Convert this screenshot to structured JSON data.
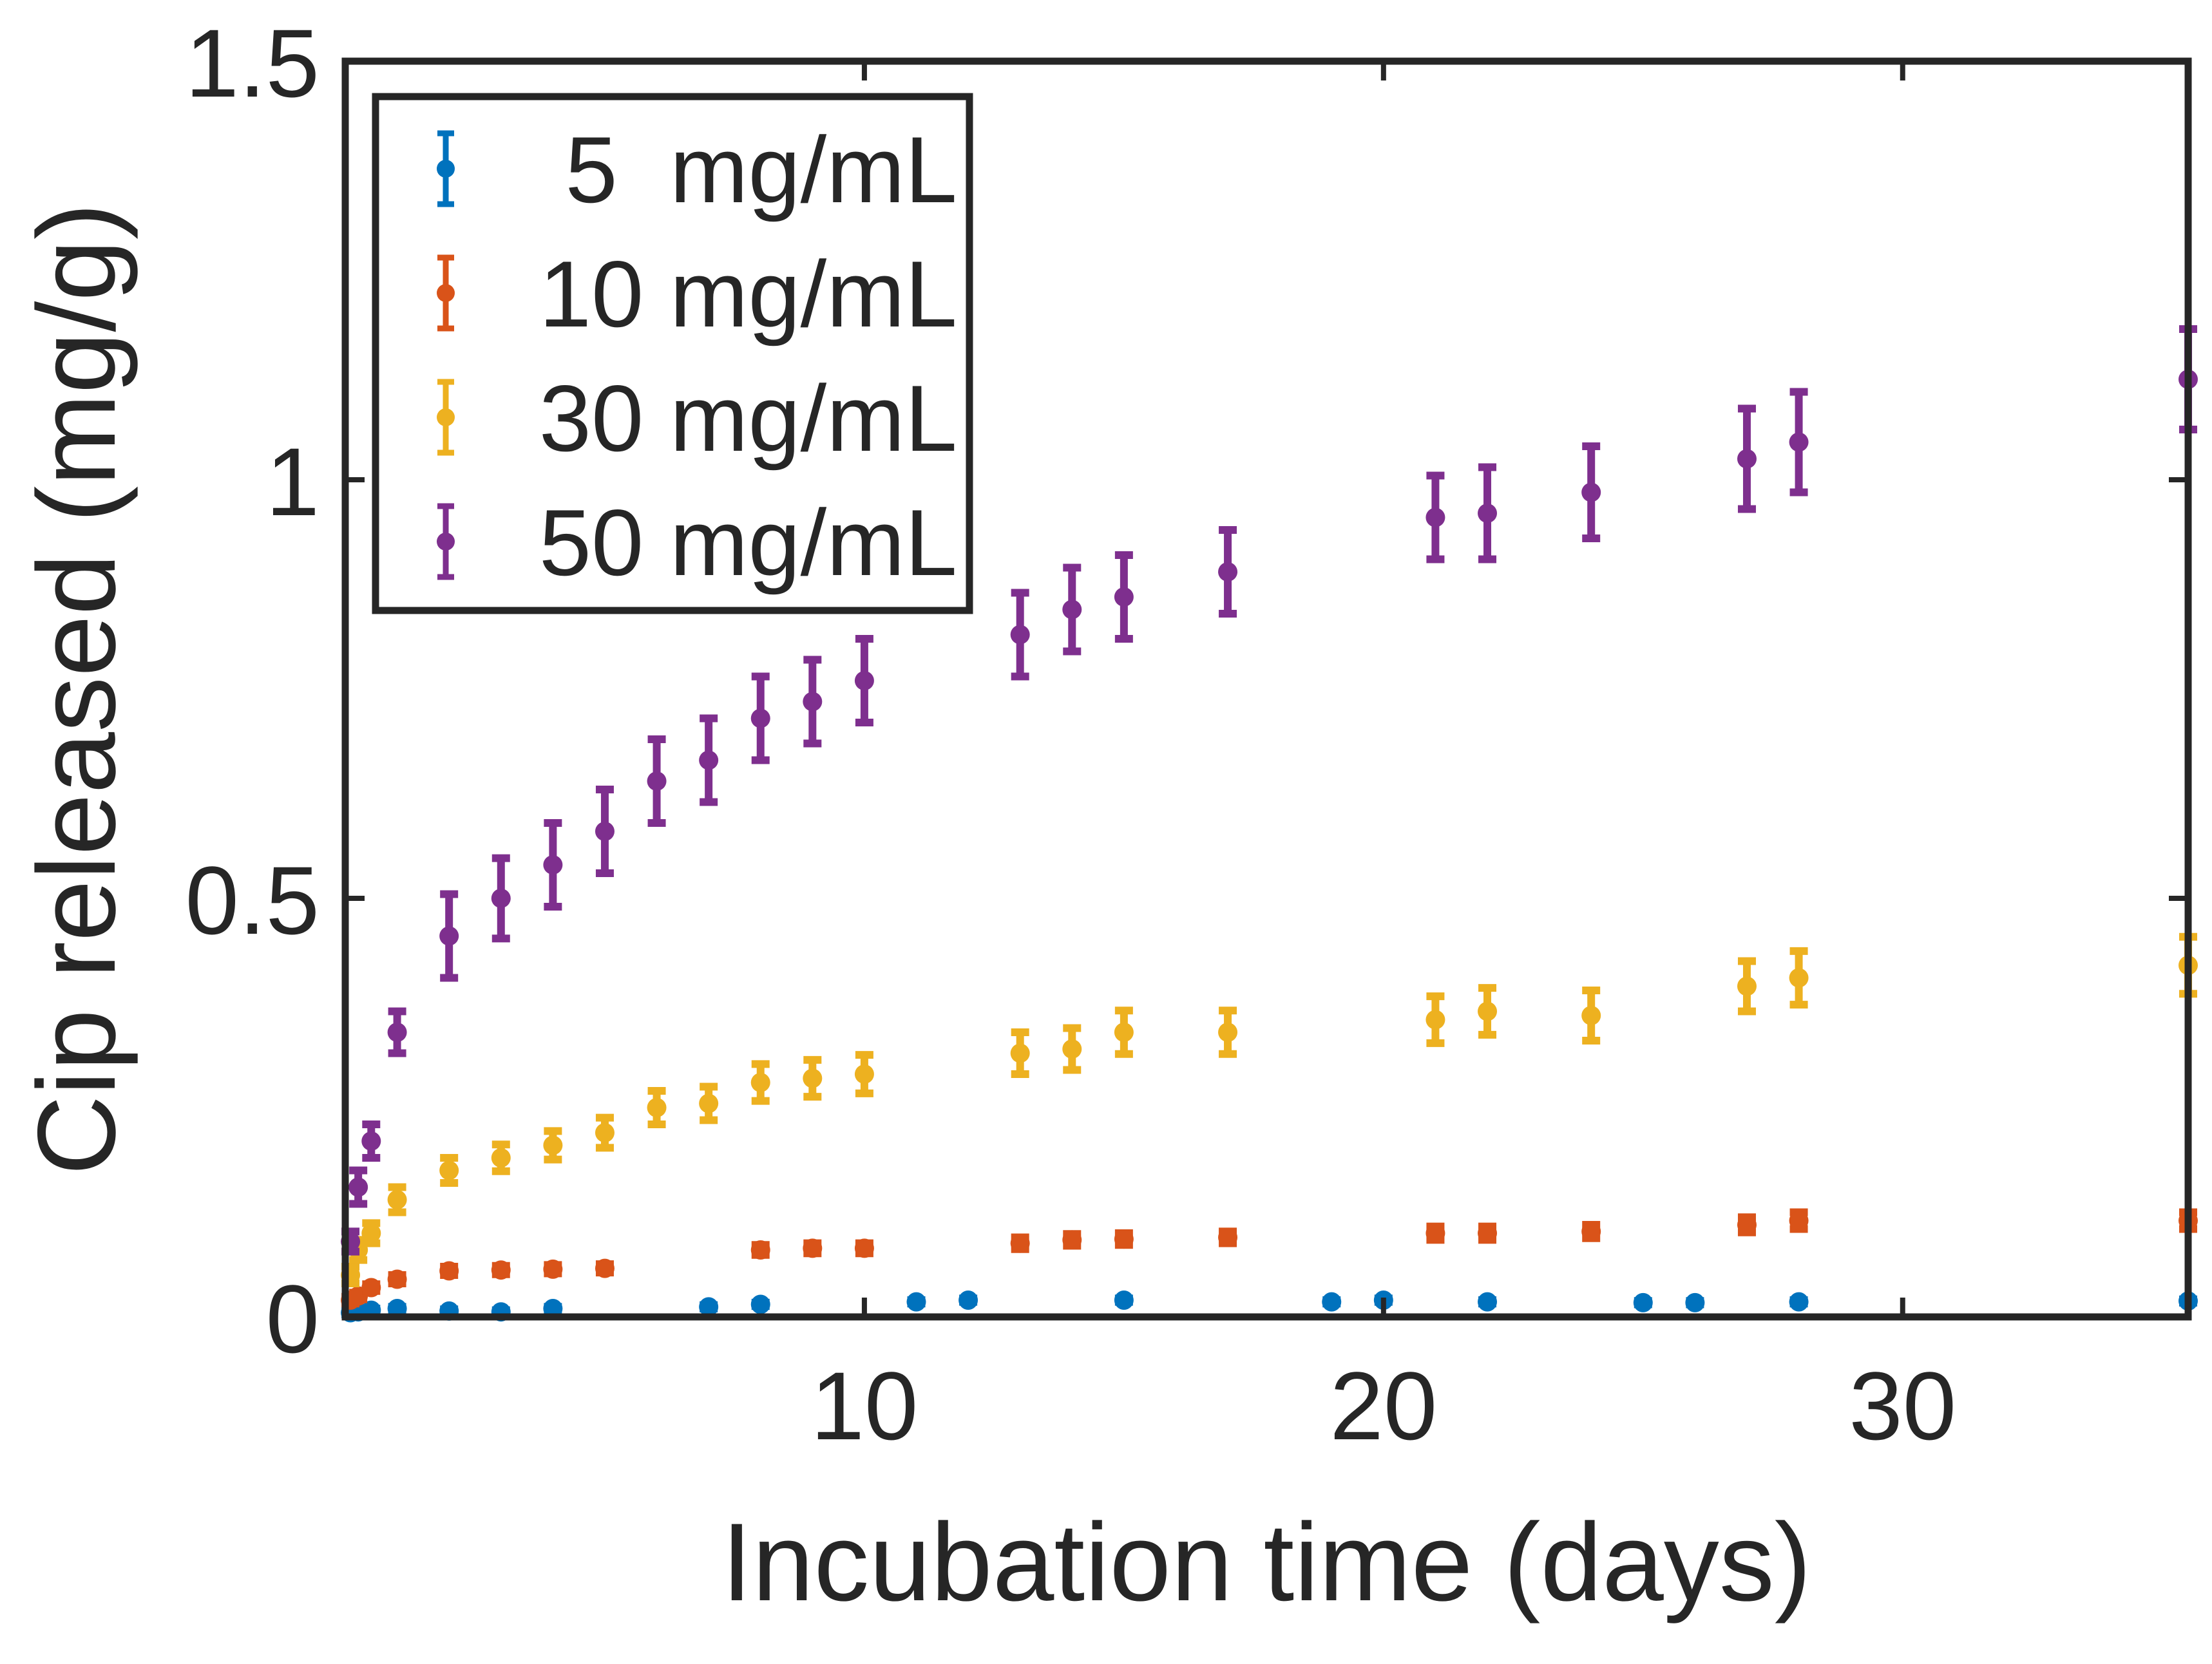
{
  "chart_data": {
    "type": "scatter",
    "title": "",
    "xlabel": "Incubation time (days)",
    "ylabel": "Cip released (mg/g)",
    "xlim": [
      0,
      35.5
    ],
    "ylim": [
      0,
      1.5
    ],
    "xticks": [
      10,
      20,
      30
    ],
    "xtick_labels": [
      "10",
      "20",
      "30"
    ],
    "yticks": [
      0,
      0.5,
      1,
      1.5
    ],
    "ytick_labels": [
      "0",
      "0.5",
      "1",
      "1.5"
    ],
    "grid": false,
    "legend_position": "top-left",
    "series": [
      {
        "name": "5  mg/mL",
        "color": "#0072BD",
        "x": [
          0.1,
          0.25,
          0.5,
          1,
          2,
          3,
          4,
          7,
          8,
          11,
          12,
          15,
          19,
          20,
          22,
          25,
          26,
          28,
          35.5
        ],
        "y": [
          0.005,
          0.006,
          0.008,
          0.01,
          0.007,
          0.006,
          0.01,
          0.012,
          0.015,
          0.018,
          0.02,
          0.02,
          0.018,
          0.02,
          0.018,
          0.017,
          0.017,
          0.018,
          0.019
        ],
        "err": [
          0.002,
          0.002,
          0.002,
          0.002,
          0.002,
          0.002,
          0.002,
          0.002,
          0.002,
          0.002,
          0.002,
          0.002,
          0.002,
          0.002,
          0.002,
          0.002,
          0.002,
          0.002,
          0.002
        ]
      },
      {
        "name": "10 mg/mL",
        "color": "#D95319",
        "x": [
          0.1,
          0.25,
          0.5,
          1,
          2,
          3,
          4,
          5,
          8,
          9,
          10,
          13,
          14,
          15,
          17,
          21,
          22,
          24,
          27,
          28,
          35.5
        ],
        "y": [
          0.02,
          0.025,
          0.035,
          0.045,
          0.055,
          0.056,
          0.057,
          0.058,
          0.08,
          0.082,
          0.082,
          0.088,
          0.092,
          0.093,
          0.095,
          0.1,
          0.1,
          0.102,
          0.11,
          0.115,
          0.115
        ],
        "err": [
          0.004,
          0.004,
          0.004,
          0.005,
          0.005,
          0.005,
          0.005,
          0.005,
          0.006,
          0.006,
          0.006,
          0.007,
          0.007,
          0.007,
          0.007,
          0.008,
          0.008,
          0.008,
          0.009,
          0.01,
          0.01
        ]
      },
      {
        "name": "30 mg/mL",
        "color": "#EDB120",
        "x": [
          0.1,
          0.25,
          0.5,
          1,
          2,
          3,
          4,
          5,
          6,
          7,
          8,
          9,
          10,
          13,
          14,
          15,
          17,
          21,
          22,
          24,
          27,
          28,
          35.5
        ],
        "y": [
          0.05,
          0.08,
          0.1,
          0.14,
          0.175,
          0.19,
          0.205,
          0.22,
          0.25,
          0.255,
          0.28,
          0.285,
          0.29,
          0.315,
          0.32,
          0.34,
          0.34,
          0.355,
          0.365,
          0.36,
          0.395,
          0.405,
          0.42
        ],
        "err": [
          0.01,
          0.012,
          0.012,
          0.015,
          0.015,
          0.016,
          0.017,
          0.018,
          0.02,
          0.02,
          0.022,
          0.022,
          0.023,
          0.025,
          0.025,
          0.026,
          0.026,
          0.028,
          0.028,
          0.03,
          0.03,
          0.032,
          0.034
        ]
      },
      {
        "name": "50 mg/mL",
        "color": "#7E2F8E",
        "x": [
          0.1,
          0.25,
          0.5,
          1,
          2,
          3,
          4,
          5,
          6,
          7,
          8,
          9,
          10,
          13,
          14,
          15,
          17,
          21,
          22,
          24,
          27,
          28,
          35.5
        ],
        "y": [
          0.09,
          0.155,
          0.21,
          0.34,
          0.455,
          0.5,
          0.54,
          0.58,
          0.64,
          0.665,
          0.715,
          0.735,
          0.76,
          0.815,
          0.845,
          0.86,
          0.89,
          0.955,
          0.96,
          0.985,
          1.025,
          1.045,
          1.12
        ],
        "err": [
          0.012,
          0.02,
          0.02,
          0.025,
          0.05,
          0.048,
          0.05,
          0.05,
          0.05,
          0.05,
          0.05,
          0.05,
          0.05,
          0.05,
          0.05,
          0.05,
          0.05,
          0.05,
          0.055,
          0.055,
          0.06,
          0.06,
          0.06
        ]
      }
    ]
  }
}
